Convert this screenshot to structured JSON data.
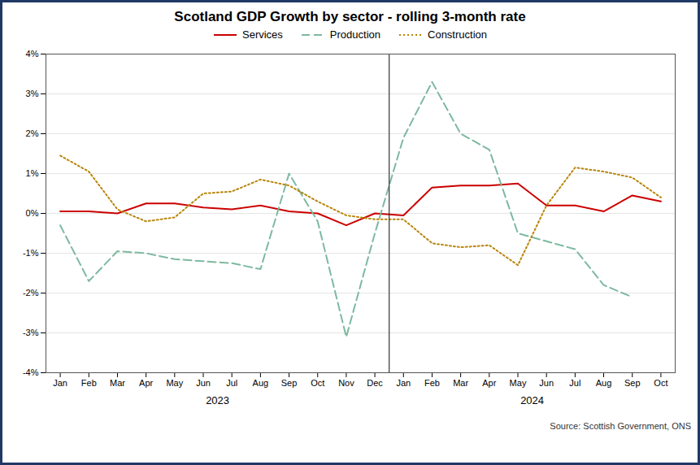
{
  "chart_data": {
    "type": "line",
    "title": "Scotland GDP Growth by sector - rolling 3-month rate",
    "source": "Source: Scottish Government, ONS",
    "categories": [
      "Jan",
      "Feb",
      "Mar",
      "Apr",
      "May",
      "Jun",
      "Jul",
      "Aug",
      "Sep",
      "Oct",
      "Nov",
      "Dec",
      "Jan",
      "Feb",
      "Mar",
      "Apr",
      "May",
      "Jun",
      "Jul",
      "Aug",
      "Sep",
      "Oct"
    ],
    "annotations": [
      {
        "text": "2023",
        "span": 12
      },
      {
        "text": "2024",
        "span": 10
      }
    ],
    "series": [
      {
        "name": "Services",
        "color": "#CC0000",
        "line_style": "solid",
        "values": [
          0.05,
          0.05,
          0.0,
          0.25,
          0.25,
          0.15,
          0.1,
          0.2,
          0.05,
          0.0,
          -0.3,
          0.0,
          -0.05,
          0.65,
          0.7,
          0.7,
          0.75,
          0.2,
          0.2,
          0.05,
          0.45,
          0.3
        ]
      },
      {
        "name": "Production",
        "color": "#7DB9A0",
        "line_style": "dashed",
        "values": [
          -0.3,
          -1.7,
          -0.95,
          -1.0,
          -1.15,
          -1.2,
          -1.25,
          -1.4,
          1.0,
          -0.2,
          -3.1,
          -0.5,
          1.9,
          3.3,
          2.0,
          1.6,
          -0.5,
          -0.7,
          -0.9,
          -1.8,
          -2.1,
          null
        ]
      },
      {
        "name": "Construction",
        "color": "#B8860B",
        "line_style": "dotted",
        "values": [
          1.45,
          1.05,
          0.1,
          -0.2,
          -0.1,
          0.5,
          0.55,
          0.85,
          0.7,
          0.3,
          -0.05,
          -0.15,
          -0.15,
          -0.75,
          -0.85,
          -0.8,
          -1.3,
          0.2,
          1.15,
          1.05,
          0.9,
          0.4
        ]
      }
    ],
    "ylim": [
      -4.0,
      4.0
    ],
    "yticks": [
      {
        "value": -4.0,
        "label": "-4%"
      },
      {
        "value": -3.0,
        "label": "-3%"
      },
      {
        "value": -2.0,
        "label": "-2%"
      },
      {
        "value": -1.0,
        "label": "-1%"
      },
      {
        "value": 0.0,
        "label": "0%"
      },
      {
        "value": 1.0,
        "label": "1%"
      },
      {
        "value": 2.0,
        "label": "2%"
      },
      {
        "value": 3.0,
        "label": "3%"
      },
      {
        "value": 4.0,
        "label": "4%"
      }
    ],
    "grid": true,
    "legend": "top"
  }
}
